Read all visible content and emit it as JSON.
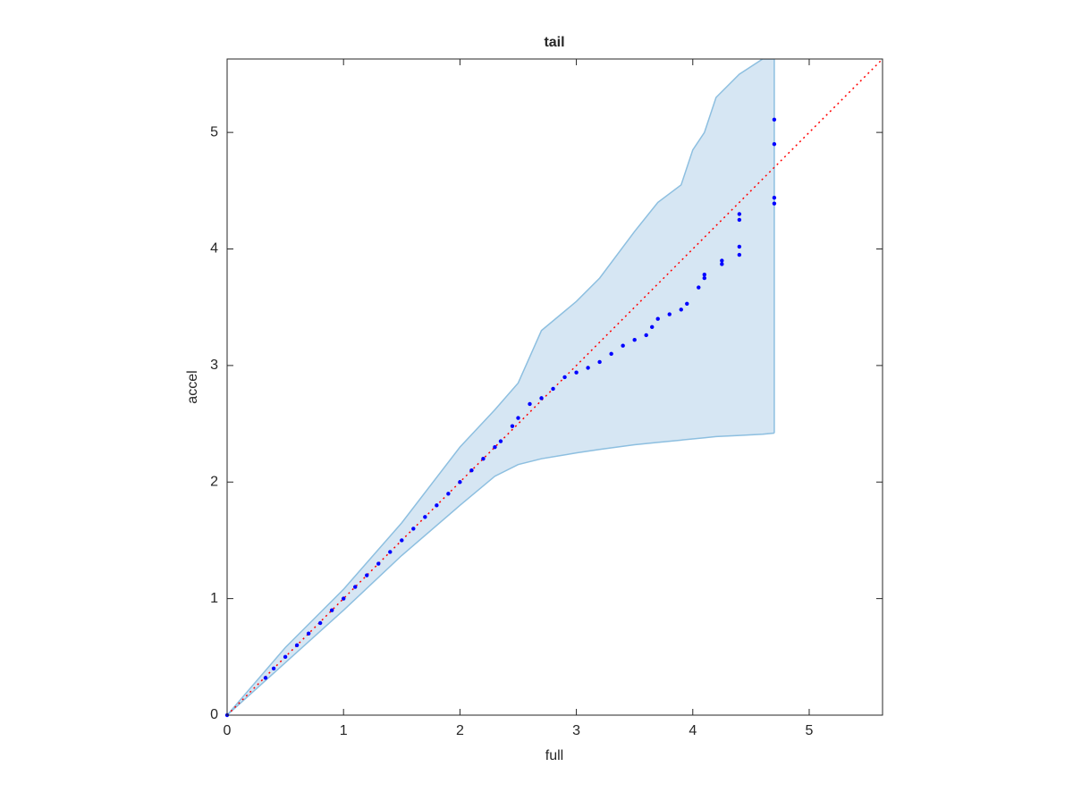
{
  "chart_data": {
    "type": "scatter",
    "title": "tail",
    "x_label": "full",
    "y_label": "accel",
    "xlim": [
      0,
      5.63
    ],
    "ylim": [
      0,
      5.63
    ],
    "xticks": [
      0,
      1,
      2,
      3,
      4,
      5
    ],
    "yticks": [
      0,
      1,
      2,
      3,
      4,
      5
    ],
    "color": "#0000ff",
    "x": [
      0,
      0.33,
      0.4,
      0.5,
      0.6,
      0.7,
      0.8,
      0.9,
      1.0,
      1.1,
      1.2,
      1.3,
      1.4,
      1.5,
      1.6,
      1.7,
      1.8,
      1.9,
      2.0,
      2.1,
      2.2,
      2.3,
      2.35,
      2.45,
      2.5,
      2.6,
      2.7,
      2.8,
      2.9,
      3.0,
      3.1,
      3.2,
      3.3,
      3.4,
      3.5,
      3.6,
      3.65,
      3.7,
      3.8,
      3.9,
      3.95,
      4.05,
      4.1,
      4.1,
      4.25,
      4.25,
      4.4,
      4.4,
      4.4,
      4.4,
      4.7,
      4.7,
      4.7,
      4.7
    ],
    "values": [
      0,
      0.32,
      0.4,
      0.5,
      0.6,
      0.7,
      0.79,
      0.9,
      1.0,
      1.1,
      1.2,
      1.3,
      1.4,
      1.5,
      1.6,
      1.7,
      1.8,
      1.9,
      2.0,
      2.1,
      2.2,
      2.3,
      2.35,
      2.48,
      2.55,
      2.67,
      2.72,
      2.8,
      2.9,
      2.94,
      2.98,
      3.03,
      3.1,
      3.17,
      3.22,
      3.26,
      3.33,
      3.4,
      3.44,
      3.48,
      3.53,
      3.67,
      3.75,
      3.78,
      3.87,
      3.9,
      3.95,
      4.02,
      4.25,
      4.3,
      4.39,
      4.44,
      4.9,
      5.11
    ],
    "band": {
      "color": "#d6e6f3",
      "edge_color": "#8dbfe0",
      "x": [
        0,
        0.5,
        1,
        1.5,
        2,
        2.3,
        2.5,
        2.7,
        3,
        3.2,
        3.5,
        3.7,
        3.9,
        4,
        4.1,
        4.2,
        4.4,
        4.6,
        4.7
      ],
      "upper": [
        0,
        0.58,
        1.08,
        1.65,
        2.3,
        2.62,
        2.85,
        3.3,
        3.55,
        3.75,
        4.15,
        4.4,
        4.55,
        4.85,
        5.0,
        5.3,
        5.5,
        5.63,
        5.63
      ],
      "lower": [
        0,
        0.45,
        0.9,
        1.37,
        1.8,
        2.05,
        2.15,
        2.2,
        2.25,
        2.28,
        2.32,
        2.34,
        2.36,
        2.37,
        2.38,
        2.39,
        2.4,
        2.41,
        2.42
      ]
    },
    "reference_line": {
      "color": "#ff0000",
      "x": [
        0,
        5.63
      ],
      "values": [
        0,
        5.63
      ]
    }
  }
}
